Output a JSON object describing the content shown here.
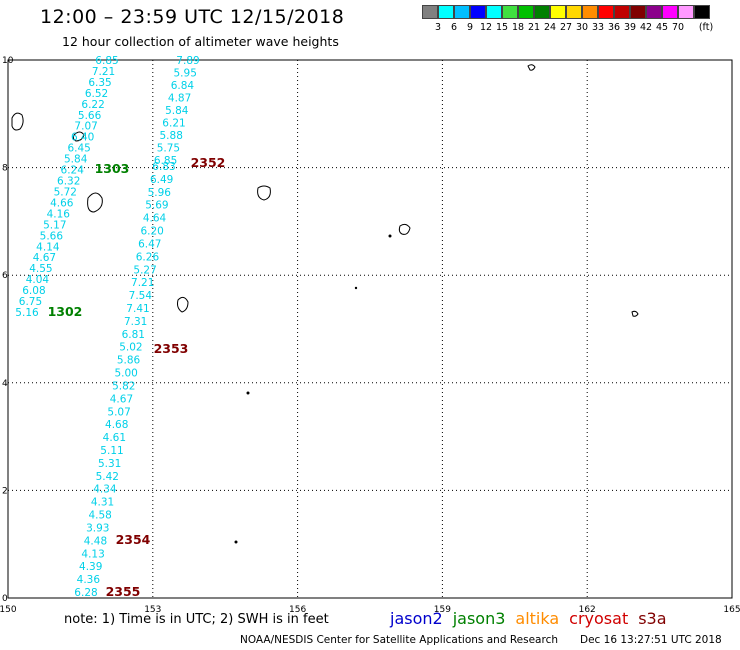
{
  "header": {
    "title": "12:00 – 23:59 UTC 12/15/2018",
    "subtitle": "12 hour collection of altimeter wave heights"
  },
  "legend": {
    "colors": [
      "#808080",
      "#00ffff",
      "#00bfff",
      "#0000ff",
      "#00ffff",
      "#40e040",
      "#00c000",
      "#008000",
      "#ffff00",
      "#ffd700",
      "#ff8c00",
      "#ff0000",
      "#c00000",
      "#800000",
      "#8b008b",
      "#ff00ff",
      "#ff99ff",
      "#000000"
    ],
    "labels": [
      "3",
      "6",
      "9",
      "12",
      "15",
      "18",
      "21",
      "24",
      "27",
      "30",
      "33",
      "36",
      "39",
      "42",
      "45",
      "70",
      "(ft)"
    ]
  },
  "map": {
    "lon_ticks": [
      "150",
      "153",
      "156",
      "159",
      "162",
      "165"
    ],
    "lat_ticks": [
      "0",
      "2",
      "4",
      "6",
      "8",
      "10"
    ],
    "track_color": "#00d0e8",
    "track1_heights": [
      "6.85",
      "7.21",
      "6.35",
      "6.52",
      "6.22",
      "5.66",
      "7.07",
      "6.40",
      "6.45",
      "5.84",
      "6.24",
      "6.32",
      "5.72",
      "4.66",
      "4.16",
      "5.17",
      "5.66",
      "4.14",
      "4.67",
      "4.55",
      "4.04",
      "6.08",
      "6.75",
      "5.16"
    ],
    "track2_heights": [
      "7.89",
      "5.95",
      "6.84",
      "4.87",
      "5.84",
      "6.21",
      "5.88",
      "5.75",
      "6.85",
      "6.83",
      "6.49",
      "5.96",
      "5.69",
      "4.64",
      "6.20",
      "6.47",
      "6.26",
      "5.27",
      "7.21",
      "7.54",
      "7.41",
      "7.31",
      "6.81",
      "5.02",
      "5.86",
      "5.00",
      "5.82",
      "4.67",
      "5.07",
      "4.68",
      "4.61",
      "5.11",
      "5.31",
      "5.42",
      "4.34",
      "4.31",
      "4.58",
      "3.93",
      "4.48",
      "4.13",
      "4.39",
      "4.36",
      "6.28"
    ],
    "time_labels": [
      {
        "text": "1303",
        "color": "#008000"
      },
      {
        "text": "1302",
        "color": "#008000"
      },
      {
        "text": "2352",
        "color": "#800000"
      },
      {
        "text": "2353",
        "color": "#800000"
      },
      {
        "text": "2354",
        "color": "#800000"
      },
      {
        "text": "2355",
        "color": "#800000"
      }
    ]
  },
  "footer": {
    "note": "note:  1) Time is in UTC;  2) SWH is in feet",
    "satellites": [
      {
        "name": "jason2",
        "color": "#0000cc"
      },
      {
        "name": "jason3",
        "color": "#008000"
      },
      {
        "name": "altika",
        "color": "#ff8c00"
      },
      {
        "name": "cryosat",
        "color": "#d00000"
      },
      {
        "name": "s3a",
        "color": "#800000"
      }
    ],
    "credit": "NOAA/NESDIS Center for Satellite Applications and Research",
    "timestamp": "Dec 16 13:27:51 UTC 2018"
  }
}
